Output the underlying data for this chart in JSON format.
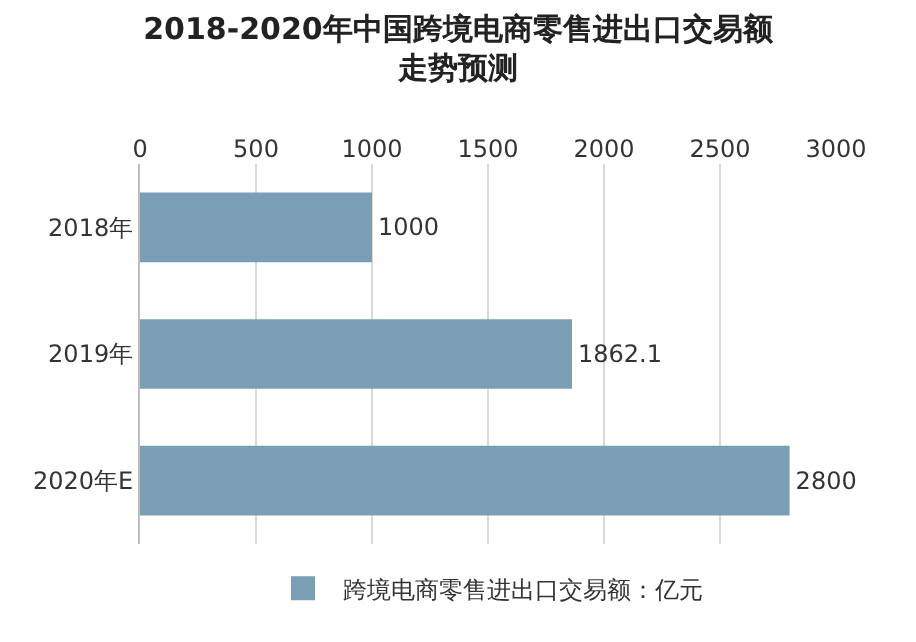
{
  "chart_data": {
    "type": "bar",
    "orientation": "horizontal",
    "title": "2018-2020年中国跨境电商零售进出口交易额走势预测",
    "categories": [
      "2018年",
      "2019年",
      "2020年E"
    ],
    "series": [
      {
        "name": "跨境电商零售进出口交易额：亿元",
        "color": "#7a9fb4",
        "values": [
          1000,
          1862.1,
          2800
        ]
      }
    ],
    "xlim": [
      0,
      3000
    ],
    "xticks": [
      0,
      500,
      1000,
      1500,
      2000,
      2500,
      3000
    ],
    "grid": "x",
    "legend": "bottom",
    "data_labels": true
  }
}
